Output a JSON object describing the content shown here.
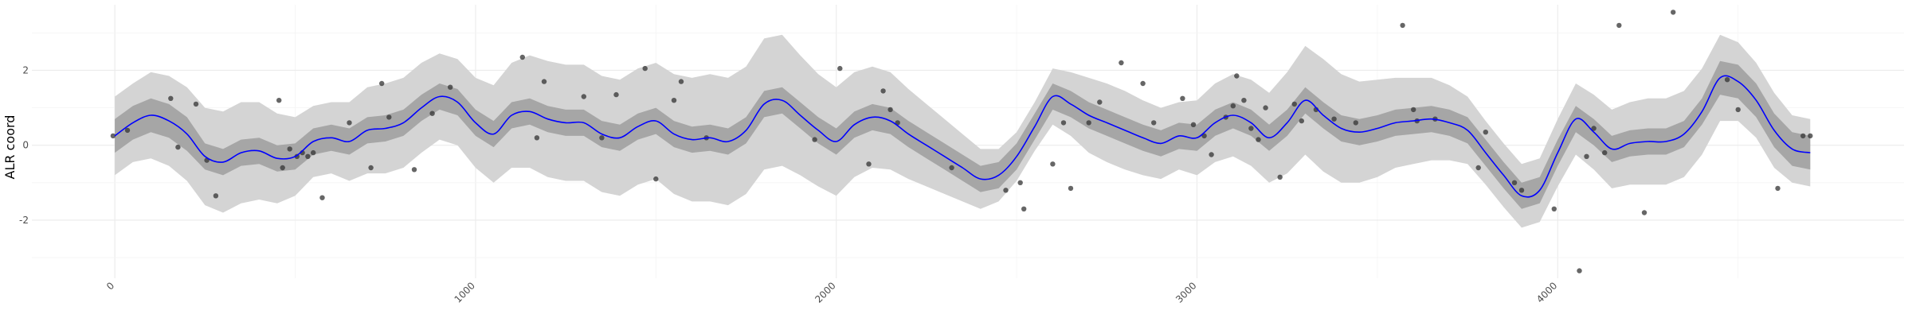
{
  "chart_data": {
    "type": "line",
    "title": "",
    "xlabel": "",
    "ylabel": "ALR coord",
    "xlim": [
      -230,
      4960
    ],
    "ylim": [
      -3.55,
      3.75
    ],
    "x_ticks": [
      0,
      1000,
      2000,
      3000,
      4000
    ],
    "x_tick_labels": [
      "0",
      "1000",
      "2000",
      "3000",
      "4000"
    ],
    "y_ticks": [
      -2,
      0,
      2
    ],
    "y_tick_labels": [
      "-2",
      "0",
      "2"
    ],
    "grid": true,
    "colors": {
      "line": "#0000ff",
      "inner_band": "#a6a6a6",
      "outer_band": "#d4d4d4",
      "points": "#333333"
    },
    "series": [
      {
        "type": "line",
        "x": [
          0,
          50,
          100,
          150,
          200,
          250,
          300,
          350,
          400,
          450,
          500,
          550,
          600,
          650,
          700,
          750,
          800,
          850,
          900,
          950,
          1000,
          1050,
          1100,
          1150,
          1200,
          1250,
          1300,
          1350,
          1400,
          1450,
          1500,
          1550,
          1600,
          1650,
          1700,
          1750,
          1800,
          1850,
          1900,
          1950,
          2000,
          2050,
          2100,
          2150,
          2200,
          2250,
          2300,
          2350,
          2400,
          2450,
          2500,
          2550,
          2600,
          2650,
          2700,
          2750,
          2800,
          2850,
          2900,
          2950,
          3000,
          3050,
          3100,
          3150,
          3200,
          3250,
          3300,
          3350,
          3400,
          3450,
          3500,
          3550,
          3600,
          3650,
          3700,
          3750,
          3800,
          3850,
          3900,
          3950,
          4000,
          4050,
          4100,
          4150,
          4200,
          4250,
          4300,
          4350,
          4400,
          4450,
          4500,
          4550,
          4600,
          4650,
          4700
        ],
        "y": [
          0.25,
          0.6,
          0.8,
          0.65,
          0.3,
          -0.3,
          -0.45,
          -0.2,
          -0.15,
          -0.35,
          -0.3,
          0.1,
          0.2,
          0.1,
          0.4,
          0.45,
          0.6,
          1.0,
          1.3,
          1.15,
          0.6,
          0.3,
          0.8,
          0.9,
          0.7,
          0.6,
          0.6,
          0.3,
          0.2,
          0.5,
          0.65,
          0.3,
          0.15,
          0.2,
          0.1,
          0.4,
          1.1,
          1.2,
          0.8,
          0.4,
          0.1,
          0.55,
          0.75,
          0.65,
          0.3,
          0.0,
          -0.3,
          -0.6,
          -0.9,
          -0.8,
          -0.3,
          0.5,
          1.3,
          1.1,
          0.8,
          0.6,
          0.4,
          0.2,
          0.05,
          0.25,
          0.2,
          0.6,
          0.8,
          0.6,
          0.2,
          0.6,
          1.2,
          0.8,
          0.45,
          0.35,
          0.45,
          0.6,
          0.65,
          0.7,
          0.6,
          0.4,
          -0.2,
          -0.8,
          -1.35,
          -1.2,
          -0.2,
          0.7,
          0.35,
          -0.1,
          0.05,
          0.1,
          0.1,
          0.3,
          0.9,
          1.8,
          1.7,
          1.2,
          0.4,
          -0.1,
          -0.2
        ]
      },
      {
        "type": "points",
        "x": [
          -5,
          35,
          155,
          175,
          225,
          255,
          280,
          455,
          465,
          485,
          505,
          520,
          535,
          550,
          575,
          650,
          710,
          740,
          760,
          830,
          880,
          930,
          1130,
          1170,
          1190,
          1300,
          1350,
          1390,
          1470,
          1500,
          1550,
          1570,
          1640,
          1940,
          2010,
          2090,
          2130,
          2150,
          2170,
          2320,
          2470,
          2510,
          2520,
          2600,
          2630,
          2650,
          2700,
          2730,
          2790,
          2850,
          2880,
          2960,
          2990,
          3020,
          3040,
          3080,
          3100,
          3110,
          3130,
          3150,
          3170,
          3190,
          3230,
          3270,
          3290,
          3330,
          3380,
          3440,
          3570,
          3600,
          3610,
          3660,
          3780,
          3800,
          3880,
          3900,
          3990,
          4060,
          4080,
          4100,
          4130,
          4170,
          4240,
          4320,
          4470,
          4500,
          4610,
          4680,
          4700
        ],
        "y": [
          0.25,
          0.4,
          1.25,
          -0.05,
          1.1,
          -0.4,
          -1.35,
          1.2,
          -0.6,
          -0.1,
          -0.3,
          -0.2,
          -0.3,
          -0.2,
          -1.4,
          0.6,
          -0.6,
          1.65,
          0.75,
          -0.65,
          0.85,
          1.55,
          2.35,
          0.2,
          1.7,
          1.3,
          0.2,
          1.35,
          2.05,
          -0.9,
          1.2,
          1.7,
          0.2,
          0.15,
          2.05,
          -0.5,
          1.45,
          0.95,
          0.6,
          -0.6,
          -1.2,
          -1.0,
          -1.7,
          -0.5,
          0.6,
          -1.15,
          0.6,
          1.15,
          2.2,
          1.65,
          0.6,
          1.25,
          0.55,
          0.25,
          -0.25,
          0.75,
          1.05,
          1.85,
          1.2,
          0.45,
          0.15,
          1.0,
          -0.85,
          1.1,
          0.65,
          0.95,
          0.7,
          0.6,
          3.2,
          0.95,
          0.65,
          0.7,
          -0.6,
          0.35,
          -1.0,
          -1.2,
          -1.7,
          -3.35,
          -0.3,
          0.45,
          -0.2,
          3.2,
          -1.8,
          3.55,
          1.75,
          0.95,
          -1.15,
          0.25,
          0.25
        ]
      }
    ],
    "bands": {
      "inner_halfwidth_y": [
        0.45,
        0.45,
        0.45,
        0.45,
        0.45,
        0.35,
        0.35,
        0.35,
        0.35,
        0.35,
        0.35,
        0.35,
        0.35,
        0.35,
        0.35,
        0.35,
        0.35,
        0.35,
        0.35,
        0.35,
        0.35,
        0.35,
        0.35,
        0.35,
        0.35,
        0.35,
        0.35,
        0.35,
        0.35,
        0.35,
        0.35,
        0.35,
        0.35,
        0.35,
        0.35,
        0.35,
        0.35,
        0.35,
        0.35,
        0.35,
        0.35,
        0.35,
        0.35,
        0.35,
        0.35,
        0.35,
        0.35,
        0.35,
        0.35,
        0.35,
        0.35,
        0.35,
        0.35,
        0.35,
        0.35,
        0.35,
        0.35,
        0.35,
        0.35,
        0.35,
        0.35,
        0.35,
        0.35,
        0.35,
        0.35,
        0.35,
        0.35,
        0.35,
        0.35,
        0.35,
        0.35,
        0.35,
        0.35,
        0.35,
        0.35,
        0.35,
        0.35,
        0.35,
        0.35,
        0.35,
        0.35,
        0.35,
        0.35,
        0.35,
        0.35,
        0.35,
        0.35,
        0.35,
        0.35,
        0.45,
        0.45,
        0.45,
        0.45,
        0.45,
        0.45
      ],
      "outer_halfwidth_y": [
        1.05,
        1.05,
        1.15,
        1.2,
        1.25,
        1.3,
        1.35,
        1.35,
        1.3,
        1.2,
        1.05,
        0.95,
        0.95,
        1.05,
        1.15,
        1.2,
        1.2,
        1.2,
        1.15,
        1.15,
        1.2,
        1.3,
        1.4,
        1.5,
        1.55,
        1.55,
        1.55,
        1.55,
        1.55,
        1.55,
        1.55,
        1.6,
        1.65,
        1.7,
        1.7,
        1.7,
        1.75,
        1.75,
        1.6,
        1.5,
        1.45,
        1.4,
        1.35,
        1.3,
        1.2,
        1.1,
        1.0,
        0.9,
        0.8,
        0.7,
        0.65,
        0.65,
        0.75,
        0.85,
        1.0,
        1.05,
        1.05,
        1.0,
        0.95,
        0.9,
        1.0,
        1.05,
        1.1,
        1.15,
        1.2,
        1.35,
        1.45,
        1.5,
        1.45,
        1.35,
        1.3,
        1.2,
        1.15,
        1.1,
        1.0,
        0.9,
        0.85,
        0.85,
        0.85,
        0.85,
        0.9,
        0.95,
        1.0,
        1.05,
        1.1,
        1.15,
        1.15,
        1.15,
        1.15,
        1.15,
        1.05,
        1.0,
        1.0,
        0.9,
        0.9
      ]
    }
  }
}
